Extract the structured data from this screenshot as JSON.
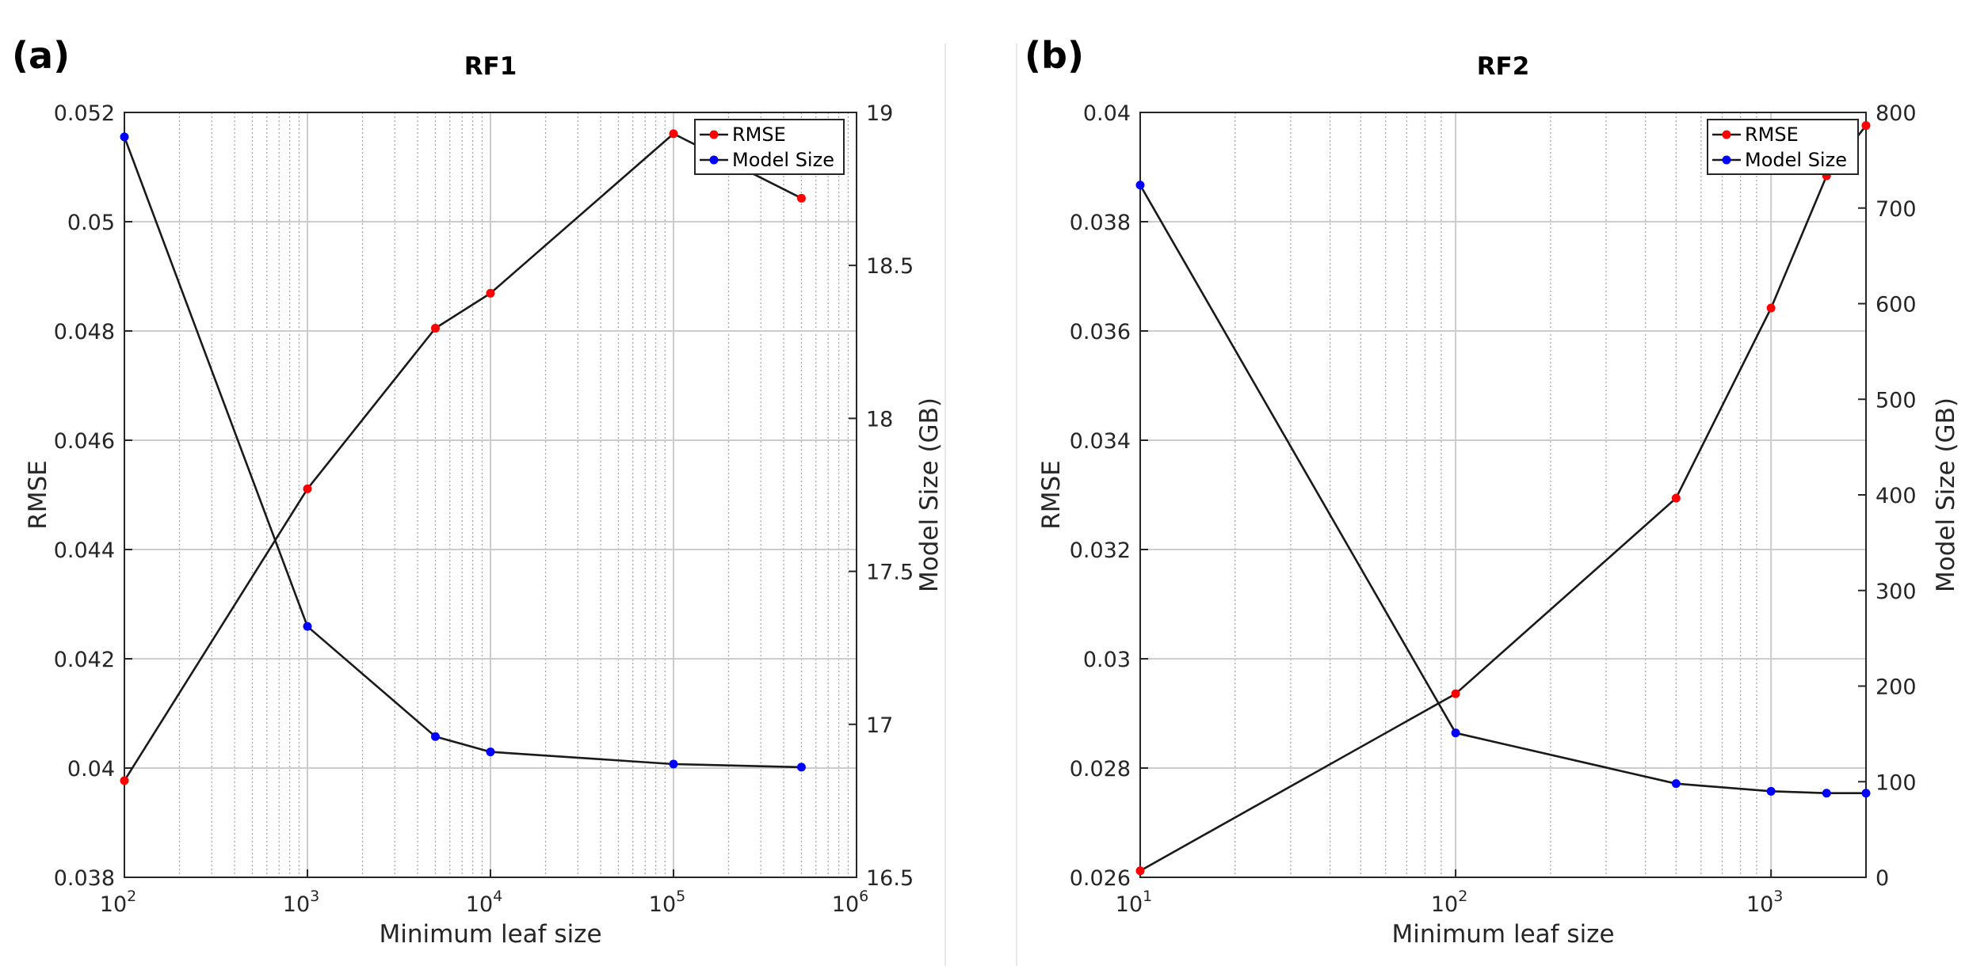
{
  "chart_data": [
    {
      "type": "line",
      "panel_label": "(a)",
      "title": "RF1",
      "xlabel": "Minimum leaf size",
      "ylabel": "RMSE",
      "y2label": "Model Size (GB)",
      "xscale": "log",
      "xlim": [
        100,
        1000000
      ],
      "ylim": [
        0.038,
        0.052
      ],
      "y2lim": [
        16.5,
        19
      ],
      "xtick_exponents": [
        "2",
        "3",
        "4",
        "5",
        "6"
      ],
      "yticks": [
        "0.038",
        "0.04",
        "0.042",
        "0.044",
        "0.046",
        "0.048",
        "0.05",
        "0.052"
      ],
      "y2ticks": [
        "16.5",
        "17",
        "17.5",
        "18",
        "18.5",
        "19"
      ],
      "grid": true,
      "legend": "top-right",
      "series": [
        {
          "name": "RMSE",
          "axis": "left",
          "color": "#ff0000",
          "x": [
            100,
            1000,
            5000,
            10000,
            100000,
            500000
          ],
          "values": [
            0.03977,
            0.04511,
            0.04805,
            0.04869,
            0.05161,
            0.05043
          ]
        },
        {
          "name": "Model Size",
          "axis": "right",
          "color": "#0000ff",
          "x": [
            100,
            1000,
            5000,
            10000,
            100000,
            500000
          ],
          "values": [
            18.92,
            17.32,
            16.96,
            16.91,
            16.87,
            16.86
          ]
        }
      ]
    },
    {
      "type": "line",
      "panel_label": "(b)",
      "title": "RF2",
      "xlabel": "Minimum leaf size",
      "ylabel": "RMSE",
      "y2label": "Model Size (GB)",
      "xscale": "log",
      "xlim": [
        10,
        2000
      ],
      "ylim": [
        0.026,
        0.04
      ],
      "y2lim": [
        0,
        800
      ],
      "xtick_exponents": [
        "1",
        "2",
        "3"
      ],
      "yticks": [
        "0.026",
        "0.028",
        "0.03",
        "0.032",
        "0.034",
        "0.036",
        "0.038",
        "0.04"
      ],
      "y2ticks": [
        "0",
        "100",
        "200",
        "300",
        "400",
        "500",
        "600",
        "700",
        "800"
      ],
      "grid": true,
      "legend": "top-right",
      "series": [
        {
          "name": "RMSE",
          "axis": "left",
          "color": "#ff0000",
          "x": [
            10,
            100,
            500,
            1000,
            1500,
            2000
          ],
          "values": [
            0.02612,
            0.02936,
            0.03294,
            0.03642,
            0.03884,
            0.03976
          ]
        },
        {
          "name": "Model Size",
          "axis": "right",
          "color": "#0000ff",
          "x": [
            10,
            100,
            500,
            1000,
            1500,
            2000
          ],
          "values": [
            724,
            151,
            98,
            90,
            88,
            88
          ]
        }
      ]
    }
  ]
}
